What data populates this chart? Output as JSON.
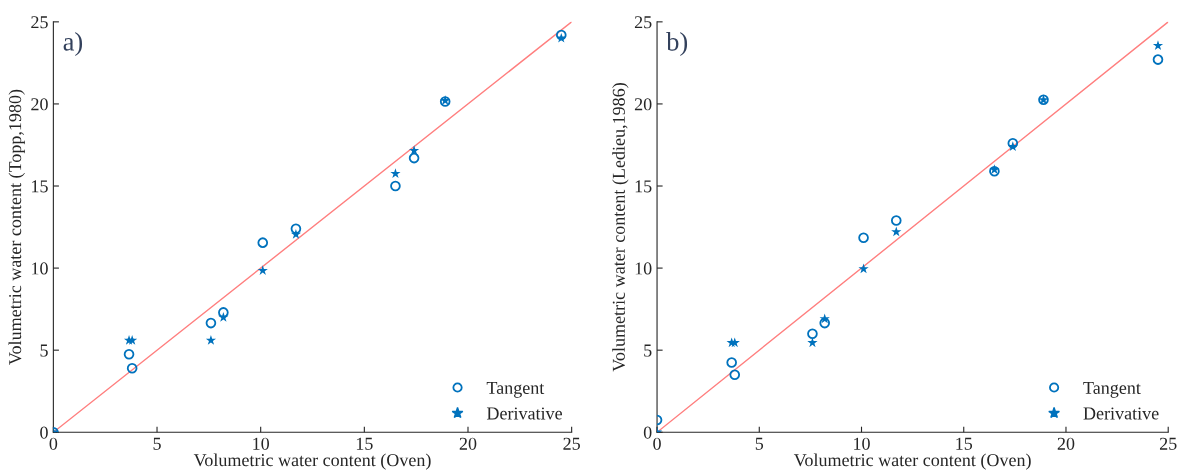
{
  "chart_data": [
    {
      "type": "scatter",
      "xlabel": "Volumetric water content (Oven)",
      "ylabel": "Volumetric water content (Topp,1980)",
      "annotations": [
        "a)"
      ],
      "xlim": [
        0,
        25
      ],
      "ylim": [
        0,
        25
      ],
      "xticks": [
        0,
        5,
        10,
        15,
        20,
        25
      ],
      "yticks": [
        0,
        5,
        10,
        15,
        20,
        25
      ],
      "legend": "bottom right",
      "series": [
        {
          "name": "Tangent",
          "color": "#0072bd",
          "marker": "circle",
          "x": [
            0,
            3.65,
            3.8,
            7.6,
            8.2,
            10.1,
            11.7,
            16.5,
            17.4,
            18.9,
            24.5
          ],
          "values": [
            0,
            4.75,
            3.9,
            6.65,
            7.3,
            11.55,
            12.4,
            15.0,
            16.7,
            20.15,
            24.2
          ]
        },
        {
          "name": "Derivative",
          "color": "#0072bd",
          "marker": "star",
          "x": [
            0,
            3.65,
            3.8,
            7.6,
            8.2,
            10.1,
            11.7,
            16.5,
            17.4,
            18.9,
            24.5
          ],
          "values": [
            0,
            5.6,
            5.6,
            5.6,
            7.0,
            9.85,
            12.05,
            15.75,
            17.15,
            20.2,
            24.0
          ]
        },
        {
          "type": "line",
          "color": "#ff7f7f",
          "x": [
            0,
            25
          ],
          "values": [
            0,
            25
          ]
        }
      ]
    },
    {
      "type": "scatter",
      "xlabel": "Volumetric water content (Oven)",
      "ylabel": "Volumetric water content (Ledieu,1986)",
      "annotations": [
        "b)"
      ],
      "xlim": [
        0,
        25
      ],
      "ylim": [
        0,
        25
      ],
      "xticks": [
        0,
        5,
        10,
        15,
        20,
        25
      ],
      "yticks": [
        0,
        5,
        10,
        15,
        20,
        25
      ],
      "legend": "bottom right",
      "series": [
        {
          "name": "Tangent",
          "color": "#0072bd",
          "marker": "circle",
          "x": [
            0,
            3.65,
            3.8,
            7.6,
            8.2,
            10.1,
            11.7,
            16.5,
            17.4,
            18.9,
            24.5
          ],
          "values": [
            0.75,
            4.25,
            3.5,
            6.0,
            6.65,
            11.85,
            12.9,
            15.9,
            17.6,
            20.25,
            22.7
          ]
        },
        {
          "name": "Derivative",
          "color": "#0072bd",
          "marker": "star",
          "x": [
            0,
            3.65,
            3.8,
            7.6,
            8.2,
            10.1,
            11.7,
            16.5,
            17.4,
            18.9,
            24.5
          ],
          "values": [
            0,
            5.45,
            5.45,
            5.45,
            6.9,
            9.95,
            12.2,
            16.0,
            17.4,
            20.25,
            23.55
          ]
        },
        {
          "type": "line",
          "color": "#ff7f7f",
          "x": [
            0,
            25
          ],
          "values": [
            0,
            25
          ]
        }
      ]
    }
  ]
}
